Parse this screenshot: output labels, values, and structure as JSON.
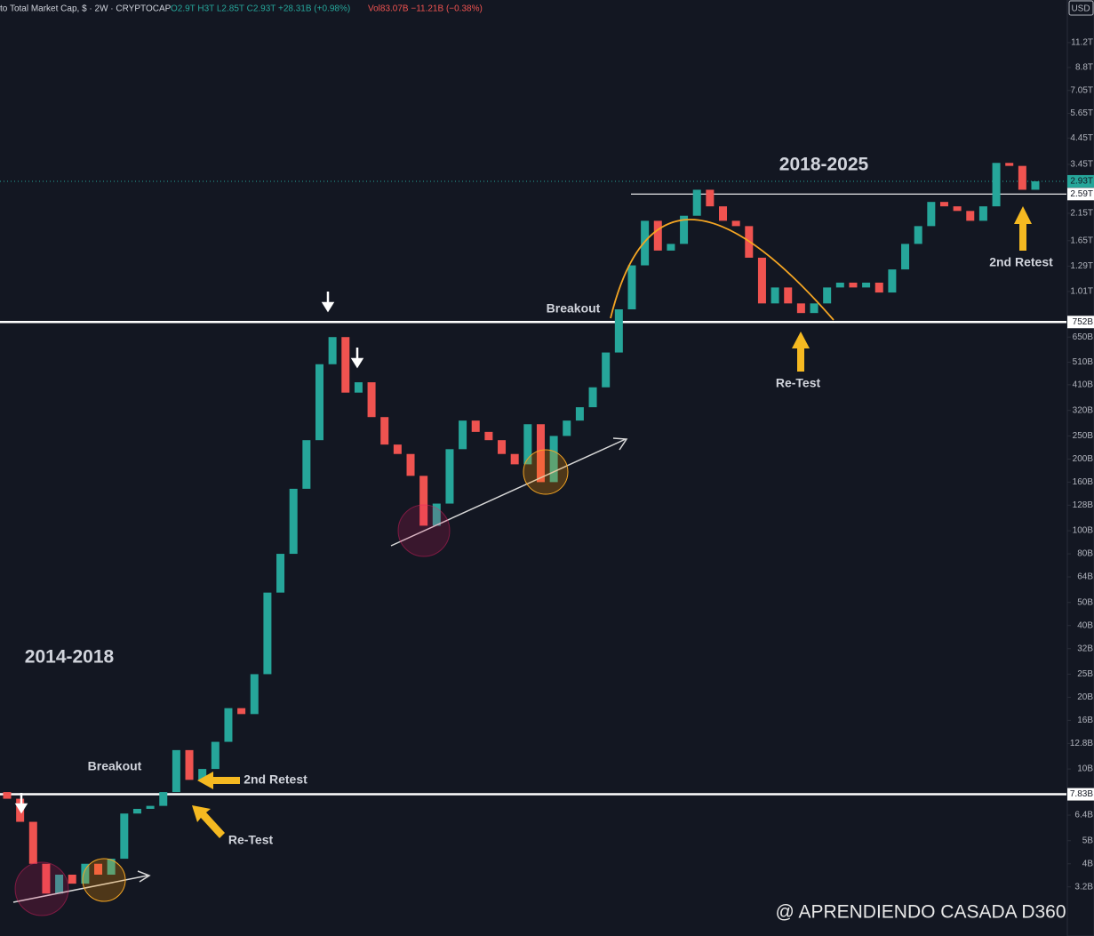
{
  "chart_data": {
    "type": "candlestick",
    "title": "to Total Market Cap, $ · 2W · CRYPTOCAP",
    "ohlc": "O2.9T H3T L2.85T C2.93T +28.31B (+0.98%)",
    "volume": "Vol83.07B −11.21B (−0.38%)",
    "currency": "USD",
    "watermark": "@ APRENDIENDO CASADA D360",
    "log_scale": true,
    "up_color": "#26a69a",
    "down_color": "#ef5350",
    "ylim": [
      1.99,
      16900
    ],
    "yticks": [
      {
        "value": 11200,
        "label": "11.2T"
      },
      {
        "value": 8800,
        "label": "8.8T"
      },
      {
        "value": 7050,
        "label": "7.05T"
      },
      {
        "value": 5650,
        "label": "5.65T"
      },
      {
        "value": 4450,
        "label": "4.45T"
      },
      {
        "value": 3450,
        "label": "3.45T"
      },
      {
        "value": 2150,
        "label": "2.15T"
      },
      {
        "value": 1650,
        "label": "1.65T"
      },
      {
        "value": 1290,
        "label": "1.29T"
      },
      {
        "value": 1010,
        "label": "1.01T"
      },
      {
        "value": 650,
        "label": "650B"
      },
      {
        "value": 510,
        "label": "510B"
      },
      {
        "value": 410,
        "label": "410B"
      },
      {
        "value": 320,
        "label": "320B"
      },
      {
        "value": 250,
        "label": "250B"
      },
      {
        "value": 200,
        "label": "200B"
      },
      {
        "value": 160,
        "label": "160B"
      },
      {
        "value": 128,
        "label": "128B"
      },
      {
        "value": 100,
        "label": "100B"
      },
      {
        "value": 80,
        "label": "80B"
      },
      {
        "value": 64,
        "label": "64B"
      },
      {
        "value": 50,
        "label": "50B"
      },
      {
        "value": 40,
        "label": "40B"
      },
      {
        "value": 32,
        "label": "32B"
      },
      {
        "value": 25,
        "label": "25B"
      },
      {
        "value": 20,
        "label": "20B"
      },
      {
        "value": 16,
        "label": "16B"
      },
      {
        "value": 12.8,
        "label": "12.8B"
      },
      {
        "value": 10,
        "label": "10B"
      },
      {
        "value": 6.4,
        "label": "6.4B"
      },
      {
        "value": 5,
        "label": "5B"
      },
      {
        "value": 4,
        "label": "4B"
      },
      {
        "value": 3.2,
        "label": "3.2B"
      }
    ],
    "price_labels": [
      {
        "value": 2930,
        "label": "2.93T",
        "color": "#26a69a"
      },
      {
        "value": 2590,
        "label": "2.59T",
        "color": "#ffffff"
      },
      {
        "value": 752,
        "label": "752B",
        "color": "#ffffff"
      },
      {
        "value": 7.83,
        "label": "7.83B",
        "color": "#ffffff"
      }
    ],
    "annotations": [
      "2018-2025",
      "2014-2018",
      "Breakout",
      "Breakout",
      "2nd Retest",
      "2nd Retest",
      "Re-Test",
      "Re-Test"
    ],
    "open": [
      8,
      7.5,
      6,
      4,
      3,
      3.6,
      3.3,
      4,
      3.6,
      4.2,
      6.5,
      6.8,
      7,
      8,
      12,
      9,
      10,
      13,
      18,
      17,
      25,
      55,
      80,
      150,
      240,
      500,
      650,
      380,
      420,
      300,
      230,
      210,
      170,
      105,
      130,
      220,
      290,
      260,
      240,
      210,
      190,
      280,
      160,
      250,
      290,
      330,
      400,
      560,
      850,
      1300,
      2000,
      1500,
      1600,
      2100,
      2700,
      2300,
      2000,
      1900,
      1400,
      900,
      1050,
      900,
      820,
      900,
      1050,
      1100,
      1050,
      1100,
      1000,
      1250,
      1600,
      1900,
      2400,
      2300,
      2200,
      2000,
      2300,
      3500,
      3400,
      2700
    ],
    "close": [
      7.5,
      6,
      4,
      3,
      3.6,
      3.3,
      4,
      3.6,
      4.2,
      6.5,
      6.8,
      7,
      8,
      12,
      9,
      10,
      13,
      18,
      17,
      25,
      55,
      80,
      150,
      240,
      500,
      650,
      380,
      420,
      300,
      230,
      210,
      170,
      105,
      130,
      220,
      290,
      260,
      240,
      210,
      190,
      280,
      160,
      250,
      290,
      330,
      400,
      560,
      850,
      1300,
      2000,
      1500,
      1600,
      2100,
      2700,
      2300,
      2000,
      1900,
      1400,
      900,
      1050,
      900,
      820,
      900,
      1050,
      1100,
      1050,
      1100,
      1000,
      1250,
      1600,
      1900,
      2400,
      2300,
      2200,
      2000,
      2300,
      3500,
      3400,
      2700,
      2930
    ]
  }
}
